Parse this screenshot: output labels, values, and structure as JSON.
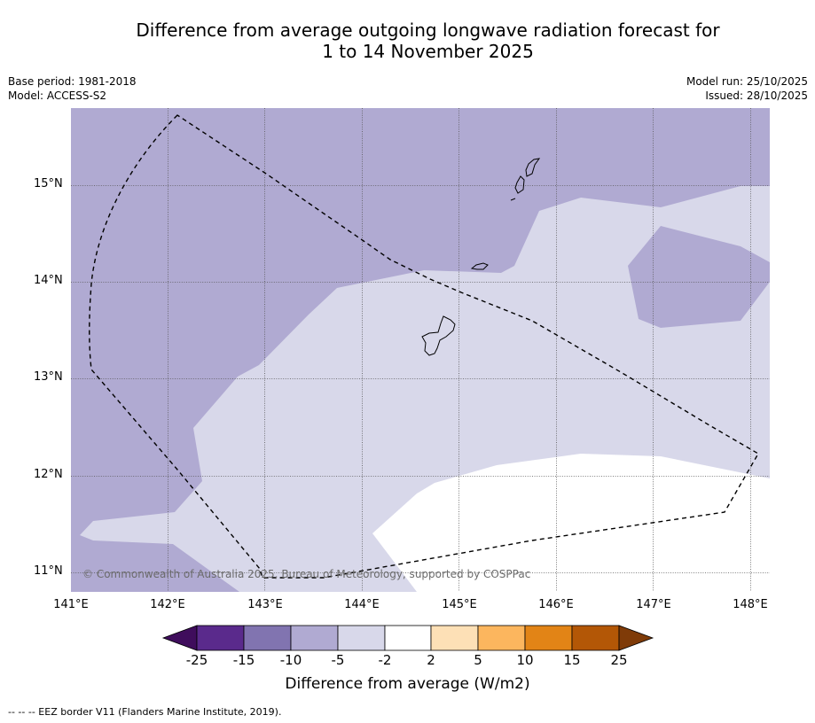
{
  "title": {
    "line1": "Difference from average outgoing longwave radiation forecast for",
    "line2": "1 to 14 November 2025"
  },
  "meta": {
    "base_period": "Base period: 1981-2018",
    "model": "Model: ACCESS-S2",
    "model_run": "Model run: 25/10/2025",
    "issued": "Issued: 28/10/2025"
  },
  "map": {
    "lat_labels": [
      "15°N",
      "14°N",
      "13°N",
      "12°N",
      "11°N"
    ],
    "lon_labels": [
      "141°E",
      "142°E",
      "143°E",
      "144°E",
      "145°E",
      "146°E",
      "147°E",
      "148°E"
    ],
    "copyright": "© Commonwealth of Australia 2025, Bureau of Meteorology, supported by COSPPac"
  },
  "colorbar": {
    "ticks": [
      "-25",
      "-15",
      "-10",
      "-5",
      "-2",
      "2",
      "5",
      "10",
      "15",
      "25"
    ],
    "colors": {
      "below_min": "#3f0d5c",
      "c1": "#5a2a8c",
      "c2": "#8174b0",
      "c3": "#b0aad2",
      "c4": "#d8d8ea",
      "c5": "#ffffff",
      "c6": "#fde0b6",
      "c7": "#fcb65e",
      "c8": "#e28416",
      "c9": "#b35706",
      "above_max": "#7f3b08"
    },
    "label": "Difference from average (W/m2)"
  },
  "footnote": "--  --  -- EEZ border V11 (Flanders Marine Institute, 2019)."
}
